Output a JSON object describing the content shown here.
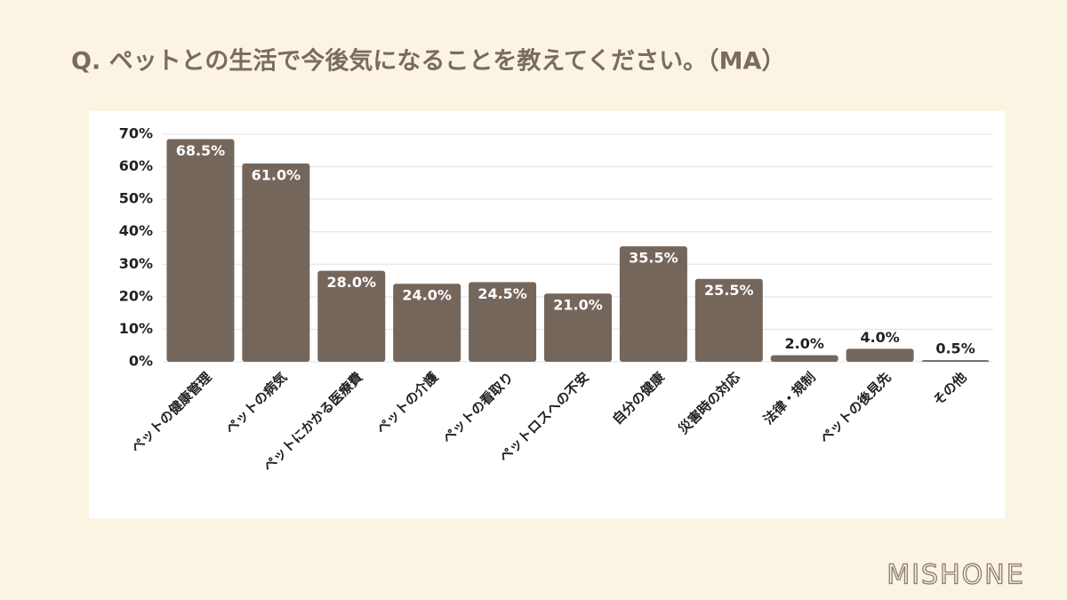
{
  "chart_data": {
    "type": "bar",
    "title": "Q. ペットとの生活で今後気になることを教えてください。（MA）",
    "categories": [
      "ペットの健康管理",
      "ペットの病気",
      "ペットにかかる医療費",
      "ペットの介護",
      "ペットの看取り",
      "ペットロスへの不安",
      "自分の健康",
      "災害時の対応",
      "法律・規制",
      "ペットの後見先",
      "その他"
    ],
    "values": [
      68.5,
      61.0,
      28.0,
      24.0,
      24.5,
      21.0,
      35.5,
      25.5,
      2.0,
      4.0,
      0.5
    ],
    "value_labels": [
      "68.5%",
      "61.0%",
      "28.0%",
      "24.0%",
      "24.5%",
      "21.0%",
      "35.5%",
      "25.5%",
      "2.0%",
      "4.0%",
      "0.5%"
    ],
    "color": "#75665c",
    "ylim": [
      0,
      70
    ],
    "yticks": [
      {
        "value": 0,
        "label": "0%"
      },
      {
        "value": 10,
        "label": "10%"
      },
      {
        "value": 20,
        "label": "20%"
      },
      {
        "value": 30,
        "label": "30%"
      },
      {
        "value": 40,
        "label": "40%"
      },
      {
        "value": 50,
        "label": "50%"
      },
      {
        "value": 60,
        "label": "60%"
      },
      {
        "value": 70,
        "label": "70%"
      }
    ],
    "grid": true
  },
  "logo": "MISHONE"
}
